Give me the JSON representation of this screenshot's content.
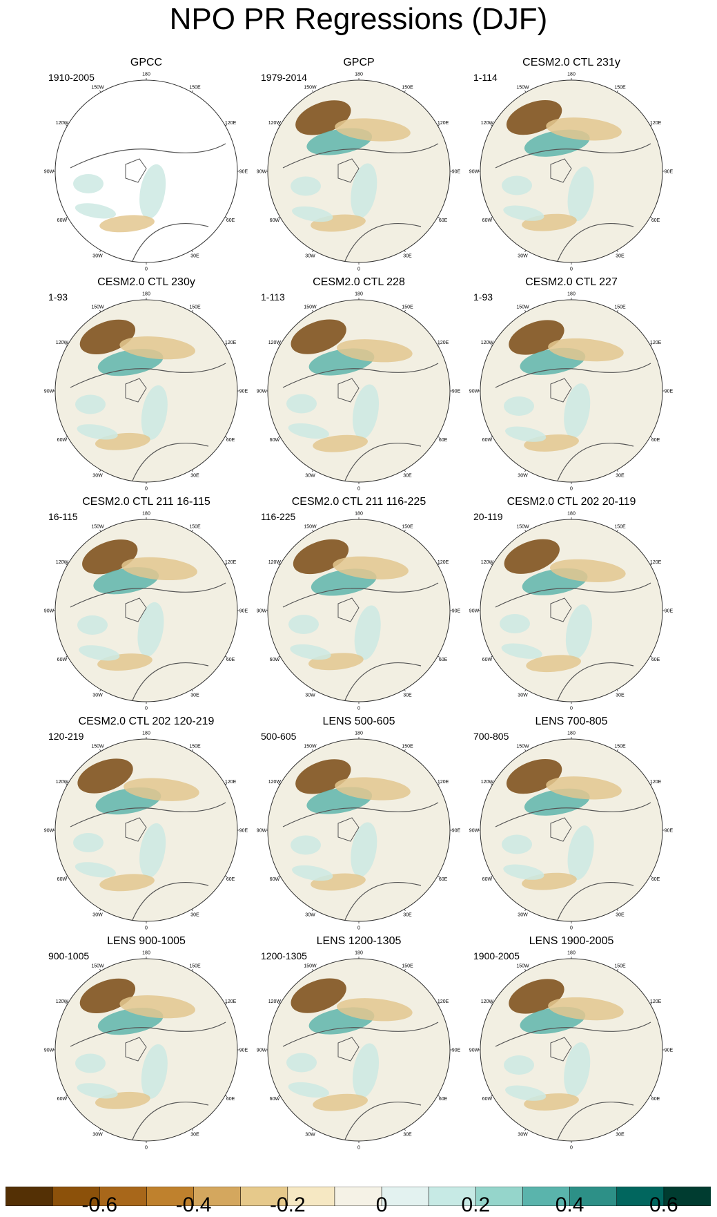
{
  "title": "NPO PR Regressions (DJF)",
  "longitude_labels": [
    "180",
    "150E",
    "120E",
    "90E",
    "60E",
    "30E",
    "0",
    "30W",
    "60W",
    "90W",
    "120W",
    "150W"
  ],
  "panels": [
    {
      "title": "GPCC",
      "period": "1910-2005"
    },
    {
      "title": "GPCP",
      "period": "1979-2014"
    },
    {
      "title": "CESM2.0 CTL 231y",
      "period": "1-114"
    },
    {
      "title": "CESM2.0 CTL 230y",
      "period": "1-93"
    },
    {
      "title": "CESM2.0 CTL 228",
      "period": "1-113"
    },
    {
      "title": "CESM2.0 CTL 227",
      "period": "1-93"
    },
    {
      "title": "CESM2.0 CTL 211 16-115",
      "period": "16-115"
    },
    {
      "title": "CESM2.0 CTL 211 116-225",
      "period": "116-225"
    },
    {
      "title": "CESM2.0 CTL 202 20-119",
      "period": "20-119"
    },
    {
      "title": "CESM2.0 CTL 202 120-219",
      "period": "120-219"
    },
    {
      "title": "LENS 500-605",
      "period": "500-605"
    },
    {
      "title": "LENS 700-805",
      "period": "700-805"
    },
    {
      "title": "LENS 900-1005",
      "period": "900-1005"
    },
    {
      "title": "LENS 1200-1305",
      "period": "1200-1305"
    },
    {
      "title": "LENS 1900-2005",
      "period": "1900-2005"
    }
  ],
  "colorbar": {
    "colors": [
      "#543005",
      "#8c510a",
      "#a8671a",
      "#bf812d",
      "#d4a75e",
      "#e6c98b",
      "#f6e8c3",
      "#f5f2e6",
      "#e3f2f0",
      "#c7eae5",
      "#95d5cb",
      "#5ab4ac",
      "#2d9087",
      "#01665e",
      "#003c30"
    ],
    "tick_labels": [
      "-0.6",
      "-0.4",
      "-0.2",
      "0",
      "0.2",
      "0.4",
      "0.6"
    ]
  },
  "colors": {
    "ocean_base": "#f2efe2",
    "land_line": "#555555",
    "brown_strong": "#7a4a14",
    "brown_mid": "#b8843f",
    "brown_light": "#e3c78f",
    "teal_strong": "#1f7f74",
    "teal_mid": "#5fb5ab",
    "teal_light": "#cde9e3"
  }
}
